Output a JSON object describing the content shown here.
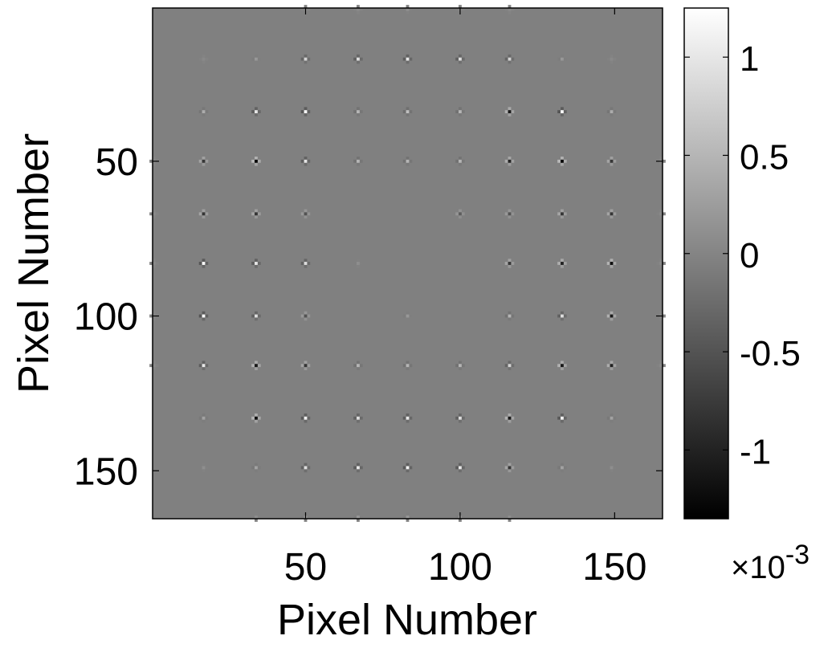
{
  "chart_data": {
    "type": "heatmap",
    "title": "",
    "xlabel": "Pixel Number",
    "ylabel": "Pixel Number",
    "xlim": [
      0.5,
      165.5
    ],
    "ylim": [
      0.5,
      165.5
    ],
    "x_ticks": [
      50,
      100,
      150
    ],
    "y_ticks": [
      50,
      100,
      150
    ],
    "y_direction": "reversed",
    "grid": false,
    "colormap": "gray",
    "background_value": 0,
    "colorbar": {
      "range": [
        -1.35,
        1.25
      ],
      "ticks": [
        -1,
        -0.5,
        0,
        0.5,
        1
      ],
      "exponent_label": "×10",
      "exponent_power": "-3"
    },
    "spot_grid": {
      "x": [
        1,
        17,
        34,
        50,
        67,
        83,
        100,
        116,
        133,
        149,
        165
      ],
      "y": [
        1,
        17,
        34,
        50,
        67,
        83,
        100,
        116,
        133,
        149,
        165
      ],
      "center_values": [
        [
          0.0,
          0.0,
          0.0,
          0.05,
          0.05,
          0.1,
          0.05,
          0.05,
          0.0,
          0.0,
          0.0
        ],
        [
          0.0,
          0.05,
          0.2,
          0.8,
          0.9,
          1.0,
          0.9,
          0.8,
          0.2,
          0.05,
          0.0
        ],
        [
          0.0,
          0.4,
          1.0,
          1.2,
          0.5,
          0.6,
          0.5,
          -1.1,
          1.2,
          0.4,
          0.0
        ],
        [
          0.05,
          -0.8,
          -1.3,
          1.0,
          0.5,
          0.5,
          0.5,
          -1.0,
          -1.3,
          -0.8,
          0.05
        ],
        [
          0.05,
          -0.8,
          -0.8,
          -0.5,
          0.0,
          0.0,
          -0.4,
          -0.5,
          -0.8,
          -0.8,
          0.05
        ],
        [
          0.05,
          1.2,
          1.0,
          0.9,
          0.1,
          0.0,
          0.0,
          -0.8,
          -1.0,
          -1.2,
          0.05
        ],
        [
          0.05,
          1.2,
          0.9,
          -0.5,
          0.0,
          0.2,
          0.0,
          0.5,
          0.9,
          -1.1,
          0.05
        ],
        [
          0.05,
          1.0,
          -1.1,
          -0.8,
          0.5,
          0.5,
          0.5,
          0.8,
          -1.1,
          -1.0,
          0.05
        ],
        [
          0.0,
          0.3,
          -1.2,
          1.1,
          0.9,
          1.0,
          0.9,
          -1.1,
          1.1,
          0.3,
          0.0
        ],
        [
          0.0,
          0.1,
          0.3,
          0.9,
          1.0,
          1.1,
          1.0,
          -0.8,
          0.3,
          0.1,
          0.0
        ],
        [
          0.0,
          0.0,
          0.1,
          0.2,
          0.2,
          0.2,
          0.2,
          0.1,
          0.0,
          0.0,
          0.0
        ]
      ]
    }
  }
}
